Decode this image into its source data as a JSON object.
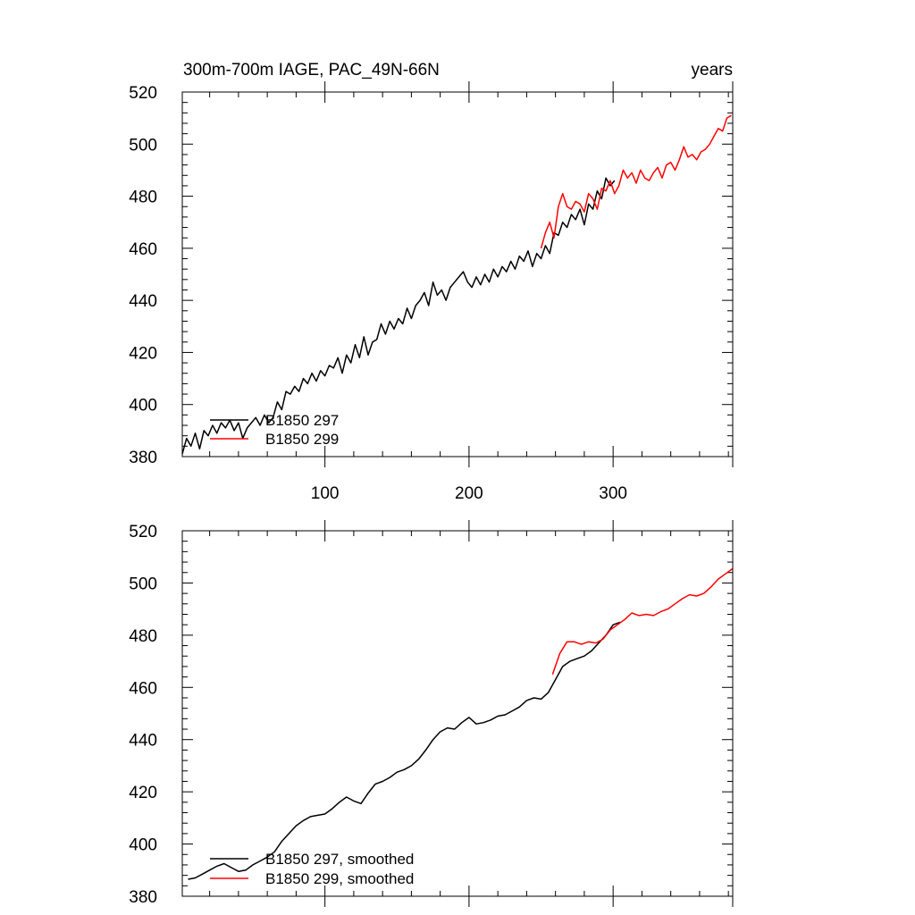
{
  "colors": {
    "black_series": "#000000",
    "red_series": "#ff0000"
  },
  "chart_data": [
    {
      "type": "line",
      "id": "raw",
      "title_left": "300m-700m IAGE, PAC_49N-66N",
      "title_right": "years",
      "xlabel": "",
      "ylabel": "",
      "xlim": [
        1,
        383
      ],
      "ylim": [
        380,
        520
      ],
      "yticks": [
        "380",
        "400",
        "420",
        "440",
        "460",
        "480",
        "500",
        "520"
      ],
      "xticks": [
        "100",
        "200",
        "300"
      ],
      "legend_position": "lower-left",
      "series": [
        {
          "name": "B1850 297",
          "color": "#000000",
          "x": [
            1,
            4,
            7,
            10,
            13,
            16,
            19,
            22,
            25,
            28,
            31,
            34,
            37,
            40,
            43,
            46,
            49,
            52,
            55,
            58,
            61,
            64,
            67,
            70,
            73,
            76,
            79,
            82,
            85,
            88,
            91,
            94,
            97,
            100,
            103,
            106,
            109,
            112,
            115,
            118,
            121,
            124,
            127,
            130,
            133,
            136,
            139,
            142,
            145,
            148,
            151,
            154,
            157,
            160,
            163,
            166,
            169,
            172,
            175,
            178,
            181,
            184,
            187,
            190,
            193,
            196,
            199,
            202,
            205,
            208,
            211,
            214,
            217,
            220,
            223,
            226,
            229,
            232,
            235,
            238,
            241,
            244,
            247,
            250,
            253,
            256,
            259,
            262,
            265,
            268,
            271,
            274,
            277,
            280,
            283,
            286,
            289,
            292,
            295,
            298,
            301
          ],
          "y": [
            381,
            387,
            384,
            389,
            383,
            390,
            388,
            392,
            389,
            393,
            391,
            394,
            390,
            393,
            387,
            391,
            393,
            395,
            392,
            396,
            393,
            395,
            401,
            398,
            405,
            404,
            407,
            405,
            410,
            408,
            412,
            409,
            413,
            411,
            415,
            414,
            418,
            412,
            419,
            416,
            423,
            418,
            426,
            419,
            424,
            425,
            431,
            427,
            432,
            429,
            433,
            431,
            437,
            433,
            438,
            440,
            443,
            438,
            447,
            442,
            444,
            440,
            445,
            447,
            449,
            451,
            447,
            445,
            449,
            446,
            450,
            447,
            452,
            449,
            453,
            451,
            455,
            452,
            457,
            455,
            459,
            453,
            458,
            456,
            461,
            458,
            466,
            465,
            470,
            468,
            473,
            471,
            475,
            469,
            477,
            475,
            482,
            479,
            487,
            484,
            486
          ]
        },
        {
          "name": "B1850 299",
          "color": "#ff0000",
          "x": [
            250,
            253,
            256,
            259,
            262,
            265,
            268,
            271,
            274,
            277,
            280,
            283,
            286,
            289,
            292,
            295,
            298,
            301,
            304,
            307,
            310,
            313,
            316,
            319,
            322,
            325,
            328,
            331,
            334,
            337,
            340,
            343,
            346,
            349,
            352,
            355,
            358,
            361,
            364,
            367,
            370,
            373,
            376,
            379,
            382
          ],
          "y": [
            460,
            466,
            470,
            464,
            476,
            481,
            476,
            475,
            478,
            477,
            474,
            481,
            479,
            475,
            483,
            482,
            486,
            481,
            484,
            490,
            487,
            489,
            485,
            490,
            487,
            486,
            489,
            491,
            487,
            492,
            493,
            490,
            494,
            499,
            495,
            496,
            494,
            497,
            498,
            500,
            503,
            506,
            505,
            510,
            511
          ]
        }
      ]
    },
    {
      "type": "line",
      "id": "smoothed",
      "title_left": "",
      "title_right": "",
      "xlabel": "",
      "ylabel": "",
      "xlim": [
        1,
        383
      ],
      "ylim": [
        380,
        520
      ],
      "yticks": [
        "380",
        "400",
        "420",
        "440",
        "460",
        "480",
        "500",
        "520"
      ],
      "xticks": [],
      "legend_position": "lower-left",
      "series": [
        {
          "name": "B1850 297, smoothed",
          "color": "#000000",
          "x": [
            5,
            10,
            15,
            20,
            25,
            30,
            35,
            40,
            45,
            50,
            55,
            60,
            65,
            70,
            75,
            80,
            85,
            90,
            95,
            100,
            105,
            110,
            115,
            120,
            125,
            130,
            135,
            140,
            145,
            150,
            155,
            160,
            165,
            170,
            175,
            180,
            185,
            190,
            195,
            200,
            205,
            210,
            215,
            220,
            225,
            230,
            235,
            240,
            245,
            250,
            255,
            260,
            265,
            270,
            275,
            280,
            285,
            290,
            295,
            300,
            305
          ],
          "y": [
            386.5,
            387,
            388.5,
            390,
            391.5,
            392.5,
            391,
            389.5,
            390,
            392,
            393.5,
            395,
            397,
            401,
            404,
            407,
            409,
            410.5,
            411,
            411.5,
            413.5,
            416,
            418,
            416.5,
            415.5,
            419.5,
            423,
            424,
            425.5,
            427.5,
            428.5,
            430,
            432.5,
            436,
            440,
            443,
            444.5,
            444,
            446.5,
            448.5,
            446,
            446.5,
            447.5,
            449,
            449.5,
            451,
            452.5,
            455,
            456,
            455.5,
            458,
            463,
            468,
            470,
            471,
            472,
            474,
            477,
            480,
            484,
            485
          ]
        },
        {
          "name": "B1850 299, smoothed",
          "color": "#ff0000",
          "x": [
            258,
            263,
            268,
            273,
            278,
            283,
            288,
            293,
            298,
            303,
            308,
            313,
            318,
            323,
            328,
            333,
            338,
            343,
            348,
            353,
            358,
            363,
            368,
            373,
            378,
            383
          ],
          "y": [
            465,
            473,
            477.5,
            477.5,
            476.5,
            477.5,
            477,
            478.5,
            482,
            484,
            486,
            488.5,
            487.5,
            488,
            487.5,
            489,
            490,
            492,
            494,
            495.5,
            495,
            496,
            498.5,
            501.5,
            503.5,
            505.5
          ]
        }
      ]
    }
  ]
}
